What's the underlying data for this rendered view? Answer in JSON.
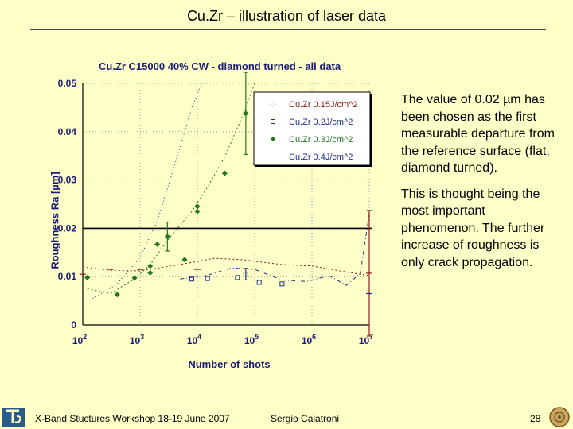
{
  "slide": {
    "title": "Cu.Zr – illustration of laser data",
    "notes": [
      "The value of 0.02 µm has been chosen as the first measurable departure from the reference surface (flat, diamond turned).",
      "This is thought being the most important phenomenon. The further increase of roughness is only crack propagation."
    ],
    "footer": {
      "event": "X-Band Stuctures Workshop 18-19 June 2007",
      "author": "Sergio Calatroni",
      "page": "28"
    }
  },
  "chart_data": {
    "type": "scatter",
    "title": "Cu.Zr C15000 40% CW - diamond turned - all data",
    "xlabel": "Number of shots",
    "ylabel": "Roughness Ra [µm]",
    "xscale": "log",
    "xlim": [
      100,
      10000000
    ],
    "ylim": [
      0,
      0.05
    ],
    "xticks": [
      {
        "value": 100,
        "base": "10",
        "exp": "2"
      },
      {
        "value": 1000,
        "base": "10",
        "exp": "3"
      },
      {
        "value": 10000,
        "base": "10",
        "exp": "4"
      },
      {
        "value": 100000,
        "base": "10",
        "exp": "5"
      },
      {
        "value": 1000000,
        "base": "10",
        "exp": "6"
      },
      {
        "value": 10000000,
        "base": "10",
        "exp": "7"
      }
    ],
    "yticks": [
      "0",
      "0.01",
      "0.02",
      "0.03",
      "0.04",
      "0.05"
    ],
    "reference_line": 0.02,
    "legend_position": "top-right",
    "series": [
      {
        "name": "Cu.Zr 0.15J/cm^2",
        "color": "#8B1A1A",
        "marker": "none",
        "x": [
          100,
          300,
          1000,
          10000,
          10000000
        ],
        "y": [
          0.0105,
          0.0115,
          0.0115,
          0.0115,
          0.0107
        ],
        "errors": [
          0,
          0,
          0,
          0,
          0.013
        ]
      },
      {
        "name": "Cu.Zr 0.2J/cm^2",
        "color": "#1A2F8B",
        "marker": "square",
        "x": [
          8000,
          15000,
          50000,
          70000,
          120000,
          300000
        ],
        "y": [
          0.0095,
          0.0096,
          0.0098,
          0.0105,
          0.0088,
          0.0085
        ],
        "errors": [
          0,
          0,
          0,
          0.0012,
          0,
          0
        ]
      },
      {
        "name": "Cu.Zr 0.3J/cm^2",
        "color": "#1F7A1F",
        "marker": "diamond",
        "x": [
          120,
          400,
          800,
          1500,
          1500,
          2000,
          3000,
          6000,
          10000,
          10000,
          30000,
          70000
        ],
        "y": [
          0.0098,
          0.0063,
          0.0097,
          0.0108,
          0.0122,
          0.0167,
          0.0183,
          0.0135,
          0.0235,
          0.0245,
          0.0314,
          0.0438
        ],
        "errors": [
          0,
          0,
          0,
          0,
          0,
          0,
          0.003,
          0,
          0,
          0,
          0,
          0.0085
        ]
      },
      {
        "name": "Cu.Zr 0.4J/cm^2",
        "color": "#1A2F8B",
        "marker": "none",
        "x": [
          10000000
        ],
        "y": [
          0.0065
        ],
        "errors": [
          0
        ]
      }
    ],
    "curves": [
      {
        "color": "#8B1A1A",
        "dash": "2 3",
        "x": [
          100,
          300,
          1000,
          5000,
          20000,
          60000,
          300000,
          1000000,
          3000000,
          10000000
        ],
        "y": [
          0.012,
          0.0113,
          0.0112,
          0.0125,
          0.0138,
          0.0135,
          0.0125,
          0.0122,
          0.0112,
          0.0102
        ]
      },
      {
        "color": "#1A2F8B",
        "dash": "5 3 1 3",
        "x": [
          5000,
          15000,
          40000,
          100000,
          300000,
          800000,
          2000000,
          4000000,
          7000000,
          10000000
        ],
        "y": [
          0.0095,
          0.0103,
          0.0118,
          0.0115,
          0.0093,
          0.009,
          0.0102,
          0.0082,
          0.0107,
          0.023
        ]
      },
      {
        "color": "#1F7A1F",
        "dash": "2 3",
        "x": [
          120,
          300,
          800,
          1500,
          3000,
          8000,
          15000,
          30000,
          60000,
          100000
        ],
        "y": [
          0.0075,
          0.0065,
          0.0095,
          0.0125,
          0.0175,
          0.0235,
          0.0285,
          0.0348,
          0.043,
          0.05
        ]
      },
      {
        "color": "#1A2F8B",
        "dash": "1 3",
        "x": [
          150,
          400,
          1000,
          2000,
          4000,
          8000,
          12000
        ],
        "y": [
          0.0055,
          0.0085,
          0.014,
          0.0215,
          0.033,
          0.045,
          0.05
        ]
      }
    ]
  }
}
